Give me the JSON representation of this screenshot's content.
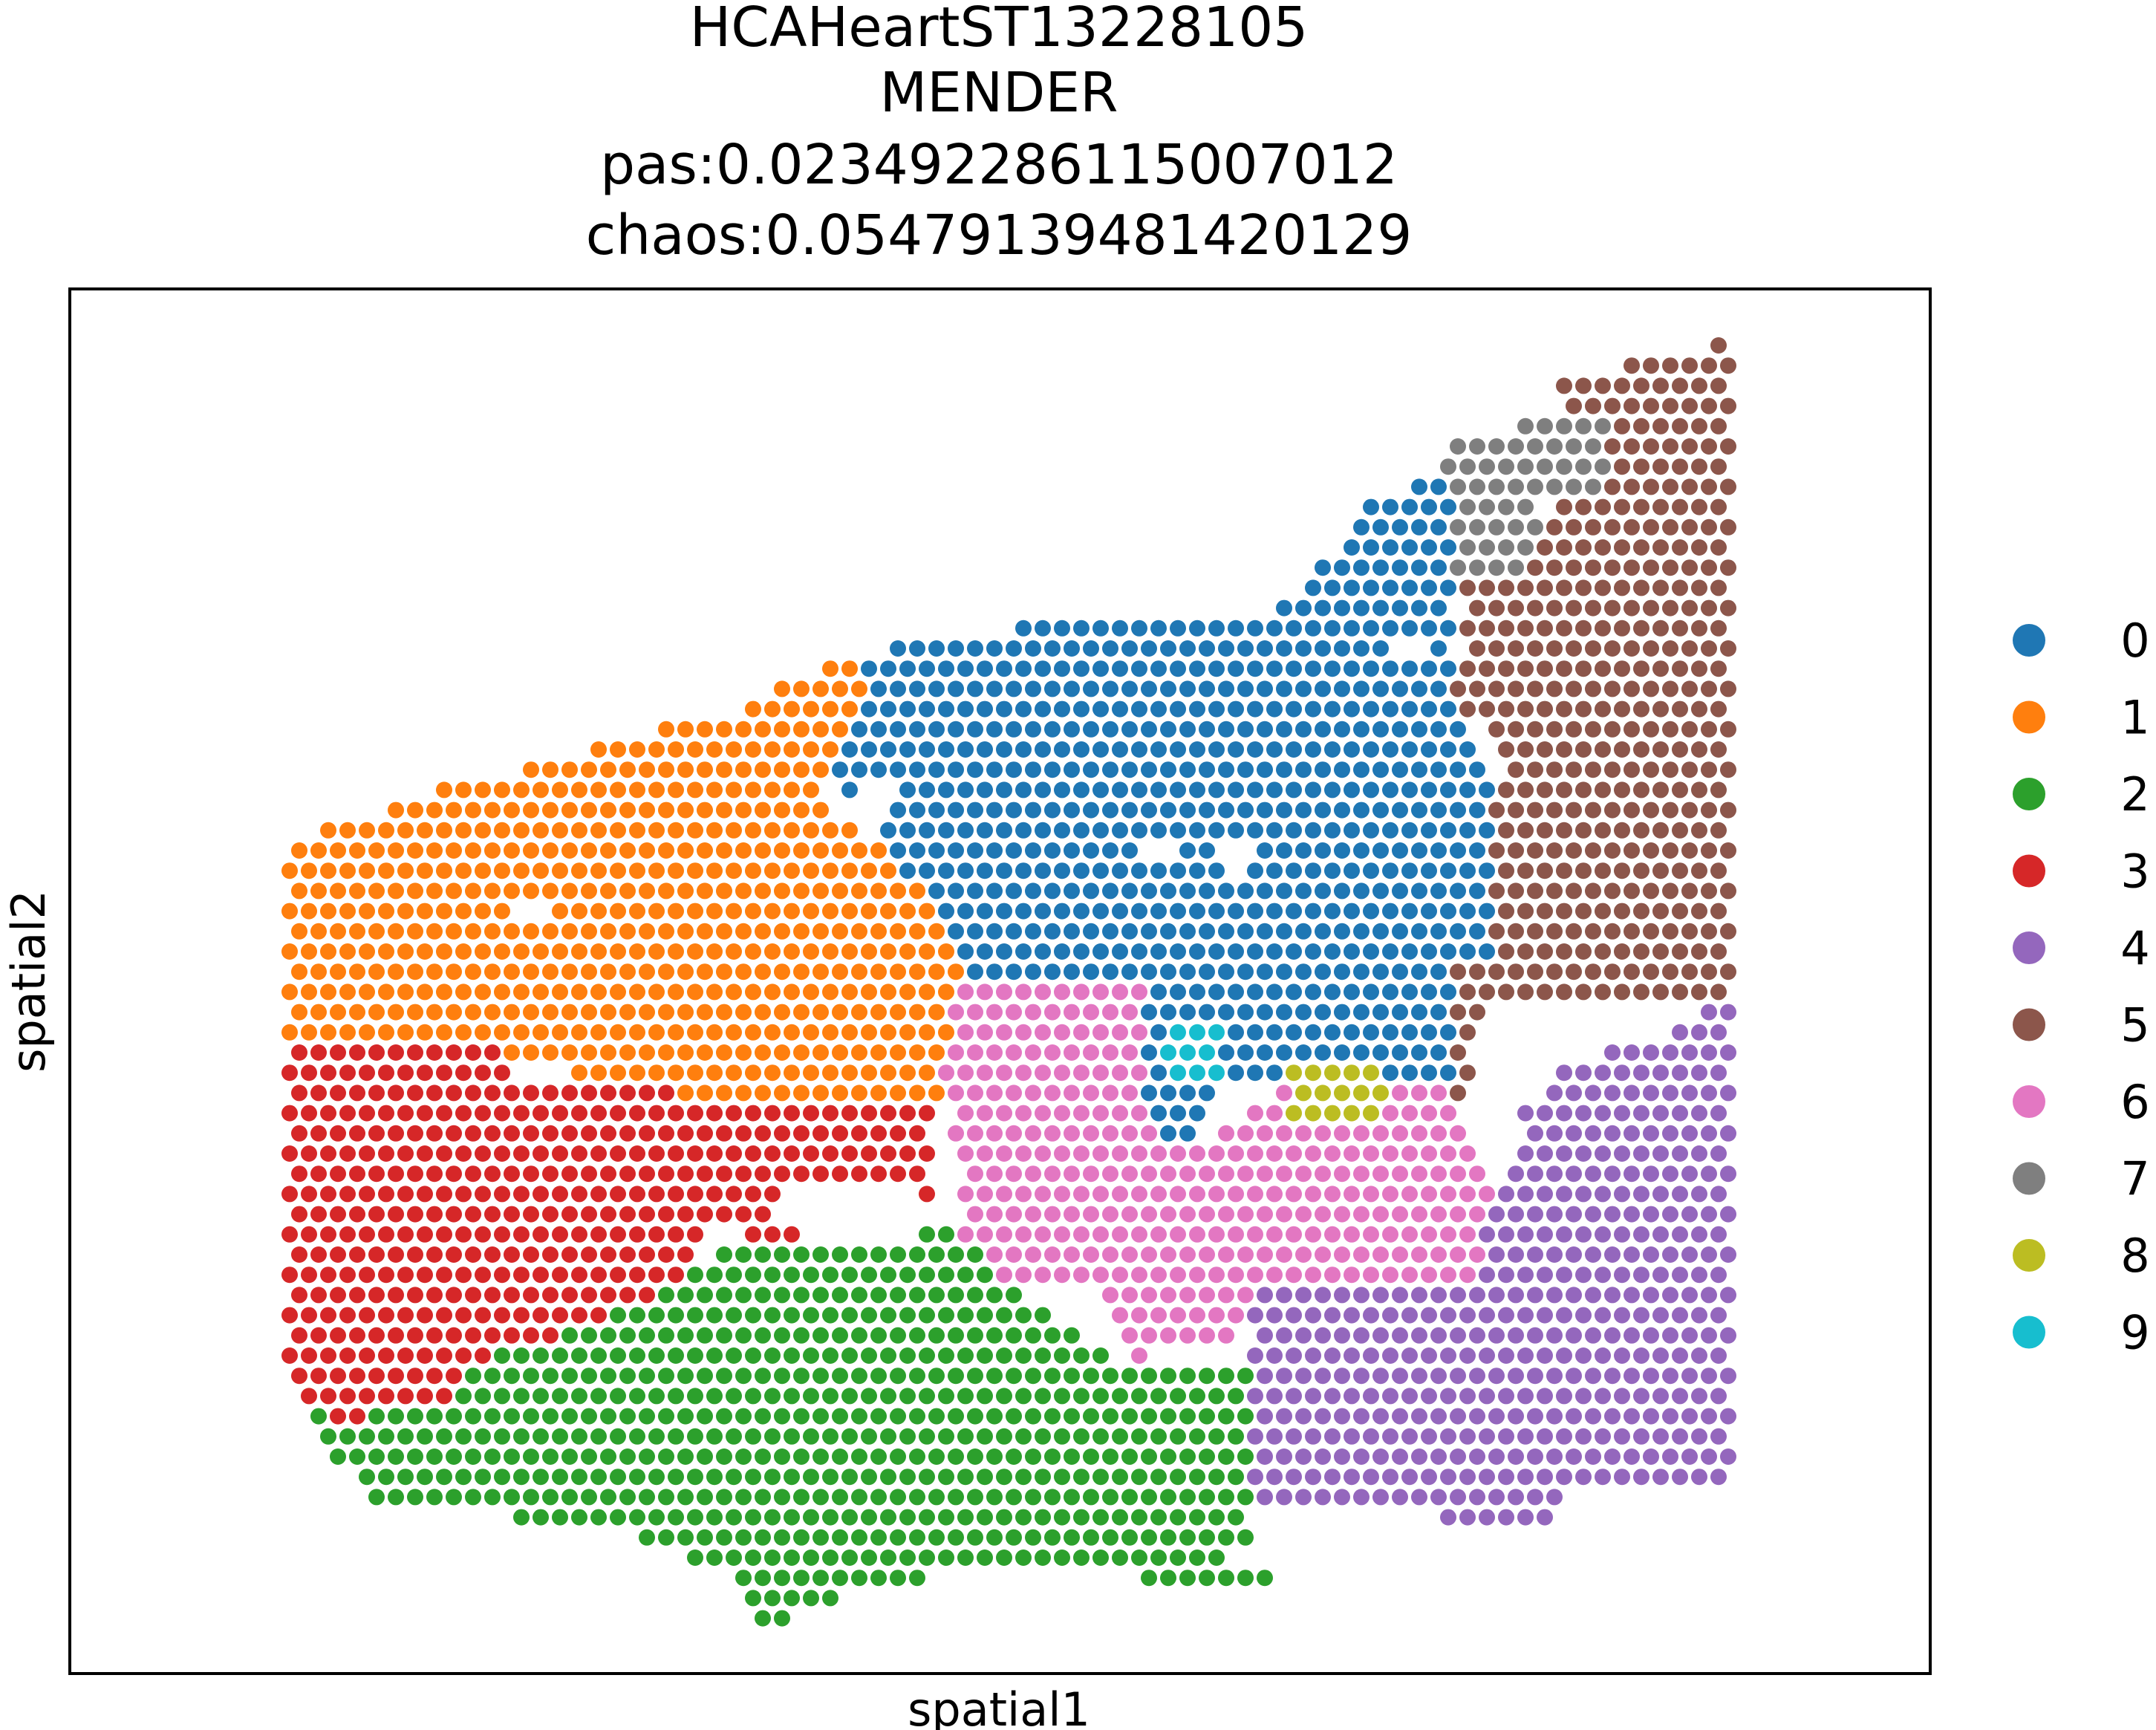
{
  "chart_data": {
    "type": "scatter",
    "title_lines": [
      "HCAHeartST13228105",
      "MENDER",
      "pas:0.023492286115007012",
      "chaos:0.05479139481420129"
    ],
    "xlabel": "spatial1",
    "ylabel": "spatial2",
    "grid": false,
    "legend_position": "right",
    "categories": [
      "0",
      "1",
      "2",
      "3",
      "4",
      "5",
      "6",
      "7",
      "8",
      "9"
    ],
    "colors": {
      "0": "#1f77b4",
      "1": "#ff7f0e",
      "2": "#2ca02c",
      "3": "#d62728",
      "4": "#9467bd",
      "5": "#8c564b",
      "6": "#e377c2",
      "7": "#7f7f7f",
      "8": "#bcbd22",
      "9": "#17becf"
    },
    "spot_grid": {
      "x_range": [
        0,
        47
      ],
      "y_range": [
        0,
        44
      ],
      "row_offset": 0.5,
      "description_of_regions": "clusters drawn as hexagonal spot grid approximating spatial domains"
    }
  }
}
